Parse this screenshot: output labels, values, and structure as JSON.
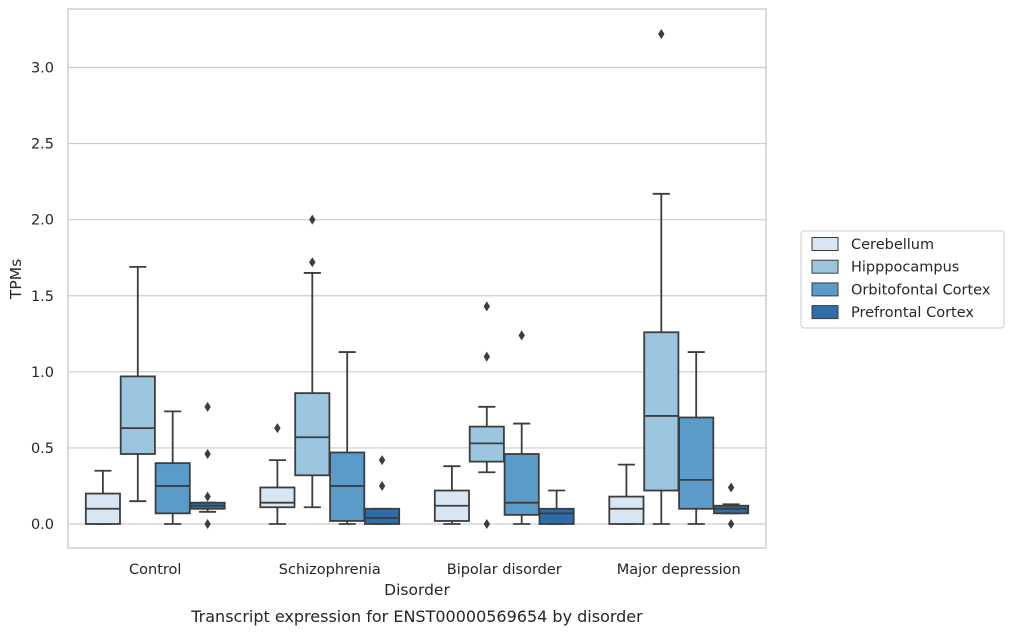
{
  "chart_data": {
    "type": "box",
    "xlabel": "Disorder",
    "ylabel": "TPMs",
    "caption": "Transcript expression for ENST00000569654 by disorder",
    "categories": [
      "Control",
      "Schizophrenia",
      "Bipolar disorder",
      "Major depression"
    ],
    "ylim": [
      -0.16,
      3.4
    ],
    "yticks": [
      0.0,
      0.5,
      1.0,
      1.5,
      2.0,
      2.5,
      3.0
    ],
    "ytick_labels": [
      "0.0",
      "0.5",
      "1.0",
      "1.5",
      "2.0",
      "2.5",
      "3.0"
    ],
    "grid": "horizontal",
    "legend_position": "right",
    "series": [
      {
        "name": "Cerebellum",
        "color": "#d8e6f4",
        "boxes": [
          {
            "whislo": 0.0,
            "q1": 0.0,
            "med": 0.1,
            "q3": 0.2,
            "whishi": 0.35,
            "fliers": []
          },
          {
            "whislo": 0.0,
            "q1": 0.11,
            "med": 0.14,
            "q3": 0.24,
            "whishi": 0.42,
            "fliers": [
              0.63
            ]
          },
          {
            "whislo": 0.0,
            "q1": 0.02,
            "med": 0.12,
            "q3": 0.22,
            "whishi": 0.38,
            "fliers": []
          },
          {
            "whislo": 0.0,
            "q1": 0.0,
            "med": 0.1,
            "q3": 0.18,
            "whishi": 0.39,
            "fliers": []
          }
        ]
      },
      {
        "name": "Hipppocampus",
        "color": "#9cc6df",
        "boxes": [
          {
            "whislo": 0.15,
            "q1": 0.46,
            "med": 0.63,
            "q3": 0.97,
            "whishi": 1.69,
            "fliers": []
          },
          {
            "whislo": 0.11,
            "q1": 0.32,
            "med": 0.57,
            "q3": 0.86,
            "whishi": 1.65,
            "fliers": [
              1.72,
              2.0
            ]
          },
          {
            "whislo": 0.34,
            "q1": 0.41,
            "med": 0.53,
            "q3": 0.64,
            "whishi": 0.77,
            "fliers": [
              0.0,
              1.1,
              1.43
            ]
          },
          {
            "whislo": 0.0,
            "q1": 0.22,
            "med": 0.71,
            "q3": 1.26,
            "whishi": 2.17,
            "fliers": [
              3.22
            ]
          }
        ]
      },
      {
        "name": "Orbitofontal Cortex",
        "color": "#5b9bc9",
        "boxes": [
          {
            "whislo": 0.0,
            "q1": 0.07,
            "med": 0.25,
            "q3": 0.4,
            "whishi": 0.74,
            "fliers": []
          },
          {
            "whislo": 0.0,
            "q1": 0.02,
            "med": 0.25,
            "q3": 0.47,
            "whishi": 1.13,
            "fliers": []
          },
          {
            "whislo": 0.0,
            "q1": 0.06,
            "med": 0.14,
            "q3": 0.46,
            "whishi": 0.66,
            "fliers": [
              1.24
            ]
          },
          {
            "whislo": 0.0,
            "q1": 0.1,
            "med": 0.29,
            "q3": 0.7,
            "whishi": 1.13,
            "fliers": []
          }
        ]
      },
      {
        "name": "Prefrontal Cortex",
        "color": "#2f6da8",
        "boxes": [
          {
            "whislo": 0.08,
            "q1": 0.1,
            "med": 0.12,
            "q3": 0.14,
            "whishi": 0.14,
            "fliers": [
              0.0,
              0.18,
              0.46,
              0.77
            ]
          },
          {
            "whislo": 0.0,
            "q1": 0.0,
            "med": 0.04,
            "q3": 0.1,
            "whishi": 0.1,
            "fliers": [
              0.25,
              0.42
            ]
          },
          {
            "whislo": 0.0,
            "q1": 0.0,
            "med": 0.07,
            "q3": 0.1,
            "whishi": 0.22,
            "fliers": []
          },
          {
            "whislo": 0.07,
            "q1": 0.07,
            "med": 0.1,
            "q3": 0.12,
            "whishi": 0.13,
            "fliers": [
              0.0,
              0.24
            ]
          }
        ]
      }
    ]
  }
}
